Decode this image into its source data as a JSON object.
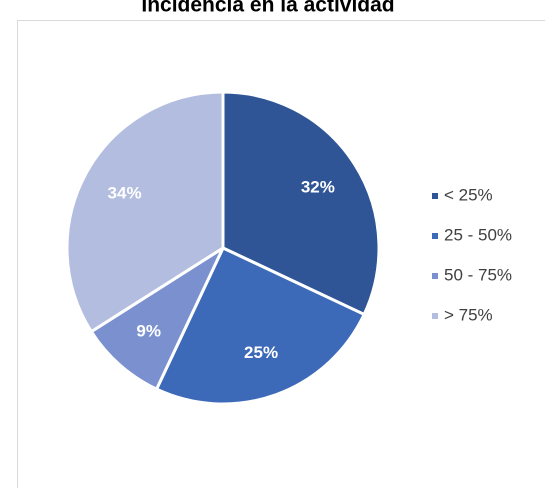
{
  "chart_data": {
    "type": "pie",
    "title": "Incidencia en la actividad",
    "categories": [
      "< 25%",
      "25 - 50%",
      "50 - 75%",
      "> 75%"
    ],
    "values": [
      32,
      25,
      9,
      34
    ],
    "value_labels": [
      "32%",
      "25%",
      "9%",
      "34%"
    ],
    "colors": [
      "#2f5597",
      "#3d69b9",
      "#7b91cf",
      "#b3bddf"
    ],
    "legend": "right"
  }
}
